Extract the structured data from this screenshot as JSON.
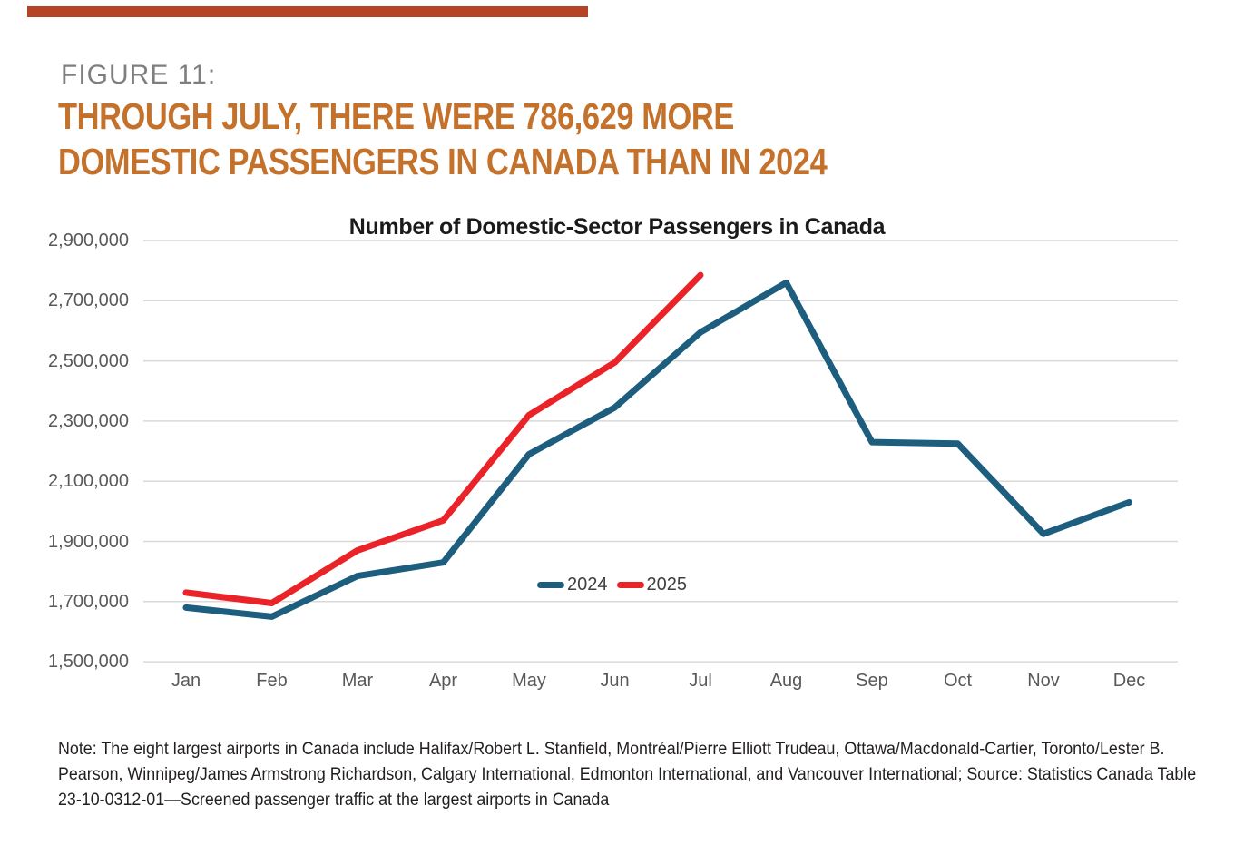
{
  "page": {
    "figure_label": "FIGURE 11:",
    "heading_line1": "THROUGH JULY, THERE WERE 786,629 MORE",
    "heading_line2": "DOMESTIC PASSENGERS IN CANADA THAN IN 2024",
    "note_lines": [
      "Note: The eight largest airports in Canada include Halifax/Robert L. Stanfield, Montréal/Pierre Elliott Trudeau, Ottawa/Macdonald-Cartier, Toronto/Lester B.",
      "Pearson, Winnipeg/James Armstrong Richardson, Calgary International, Edmonton International, and Vancouver International; Source: Statistics Canada Table",
      "23-10-0312-01—Screened passenger traffic at the largest airports in Canada"
    ]
  },
  "colors": {
    "accent_bar": "#B54427",
    "heading": "#C4712C",
    "figure_label": "#7F7F7F",
    "chart_title": "#1A1A1A",
    "axis_text": "#595959",
    "gridline": "#D9D9D9",
    "legend_text": "#404040",
    "note_text": "#231F20",
    "series_2024": "#1D5D7E",
    "series_2025": "#EA2328"
  },
  "chart_data": {
    "type": "line",
    "title": "Number of Domestic-Sector Passengers in Canada",
    "categories": [
      "Jan",
      "Feb",
      "Mar",
      "Apr",
      "May",
      "Jun",
      "Jul",
      "Aug",
      "Sep",
      "Oct",
      "Nov",
      "Dec"
    ],
    "series": [
      {
        "name": "2024",
        "color": "#1D5D7E",
        "values": [
          1680000,
          1650000,
          1785000,
          1830000,
          2190000,
          2345000,
          2595000,
          2760000,
          2230000,
          2225000,
          1925000,
          2030000
        ]
      },
      {
        "name": "2025",
        "color": "#EA2328",
        "values": [
          1730000,
          1695000,
          1870000,
          1970000,
          2320000,
          2495000,
          2785000
        ]
      }
    ],
    "ylim": [
      1500000,
      2900000
    ],
    "ytick_step": 200000,
    "ytick_labels": [
      "1,500,000",
      "1,700,000",
      "1,900,000",
      "2,100,000",
      "2,300,000",
      "2,500,000",
      "2,700,000",
      "2,900,000"
    ],
    "grid": true,
    "legend_position": "inside-center",
    "xlabel": "",
    "ylabel": ""
  }
}
